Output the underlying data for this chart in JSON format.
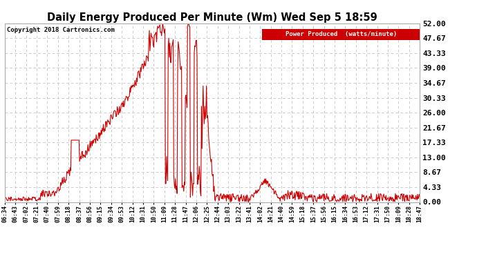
{
  "title": "Daily Energy Produced Per Minute (Wm) Wed Sep 5 18:59",
  "copyright": "Copyright 2018 Cartronics.com",
  "legend_label": "Power Produced  (watts/minute)",
  "legend_bg": "#cc0000",
  "legend_fg": "#ffffff",
  "line_color": "#cc0000",
  "bg_color": "#ffffff",
  "plot_bg": "#ffffff",
  "grid_color": "#cccccc",
  "ymin": 0.0,
  "ymax": 52.0,
  "yticks": [
    0.0,
    4.33,
    8.67,
    13.0,
    17.33,
    21.67,
    26.0,
    30.33,
    34.67,
    39.0,
    43.33,
    47.67,
    52.0
  ],
  "xtick_labels": [
    "06:34",
    "06:43",
    "07:02",
    "07:21",
    "07:40",
    "07:59",
    "08:18",
    "08:37",
    "08:56",
    "09:15",
    "09:34",
    "09:53",
    "10:12",
    "10:31",
    "10:50",
    "11:09",
    "11:28",
    "11:47",
    "12:06",
    "12:25",
    "12:44",
    "13:03",
    "13:22",
    "13:41",
    "14:02",
    "14:21",
    "14:40",
    "14:59",
    "15:18",
    "15:37",
    "15:56",
    "16:15",
    "16:34",
    "16:53",
    "17:12",
    "17:31",
    "17:50",
    "18:09",
    "18:28",
    "18:47"
  ],
  "yticklabels": [
    "0.00",
    "4.33",
    "8.67",
    "13.00",
    "17.33",
    "21.67",
    "26.00",
    "30.33",
    "34.67",
    "39.00",
    "43.33",
    "47.67",
    "52.00"
  ]
}
